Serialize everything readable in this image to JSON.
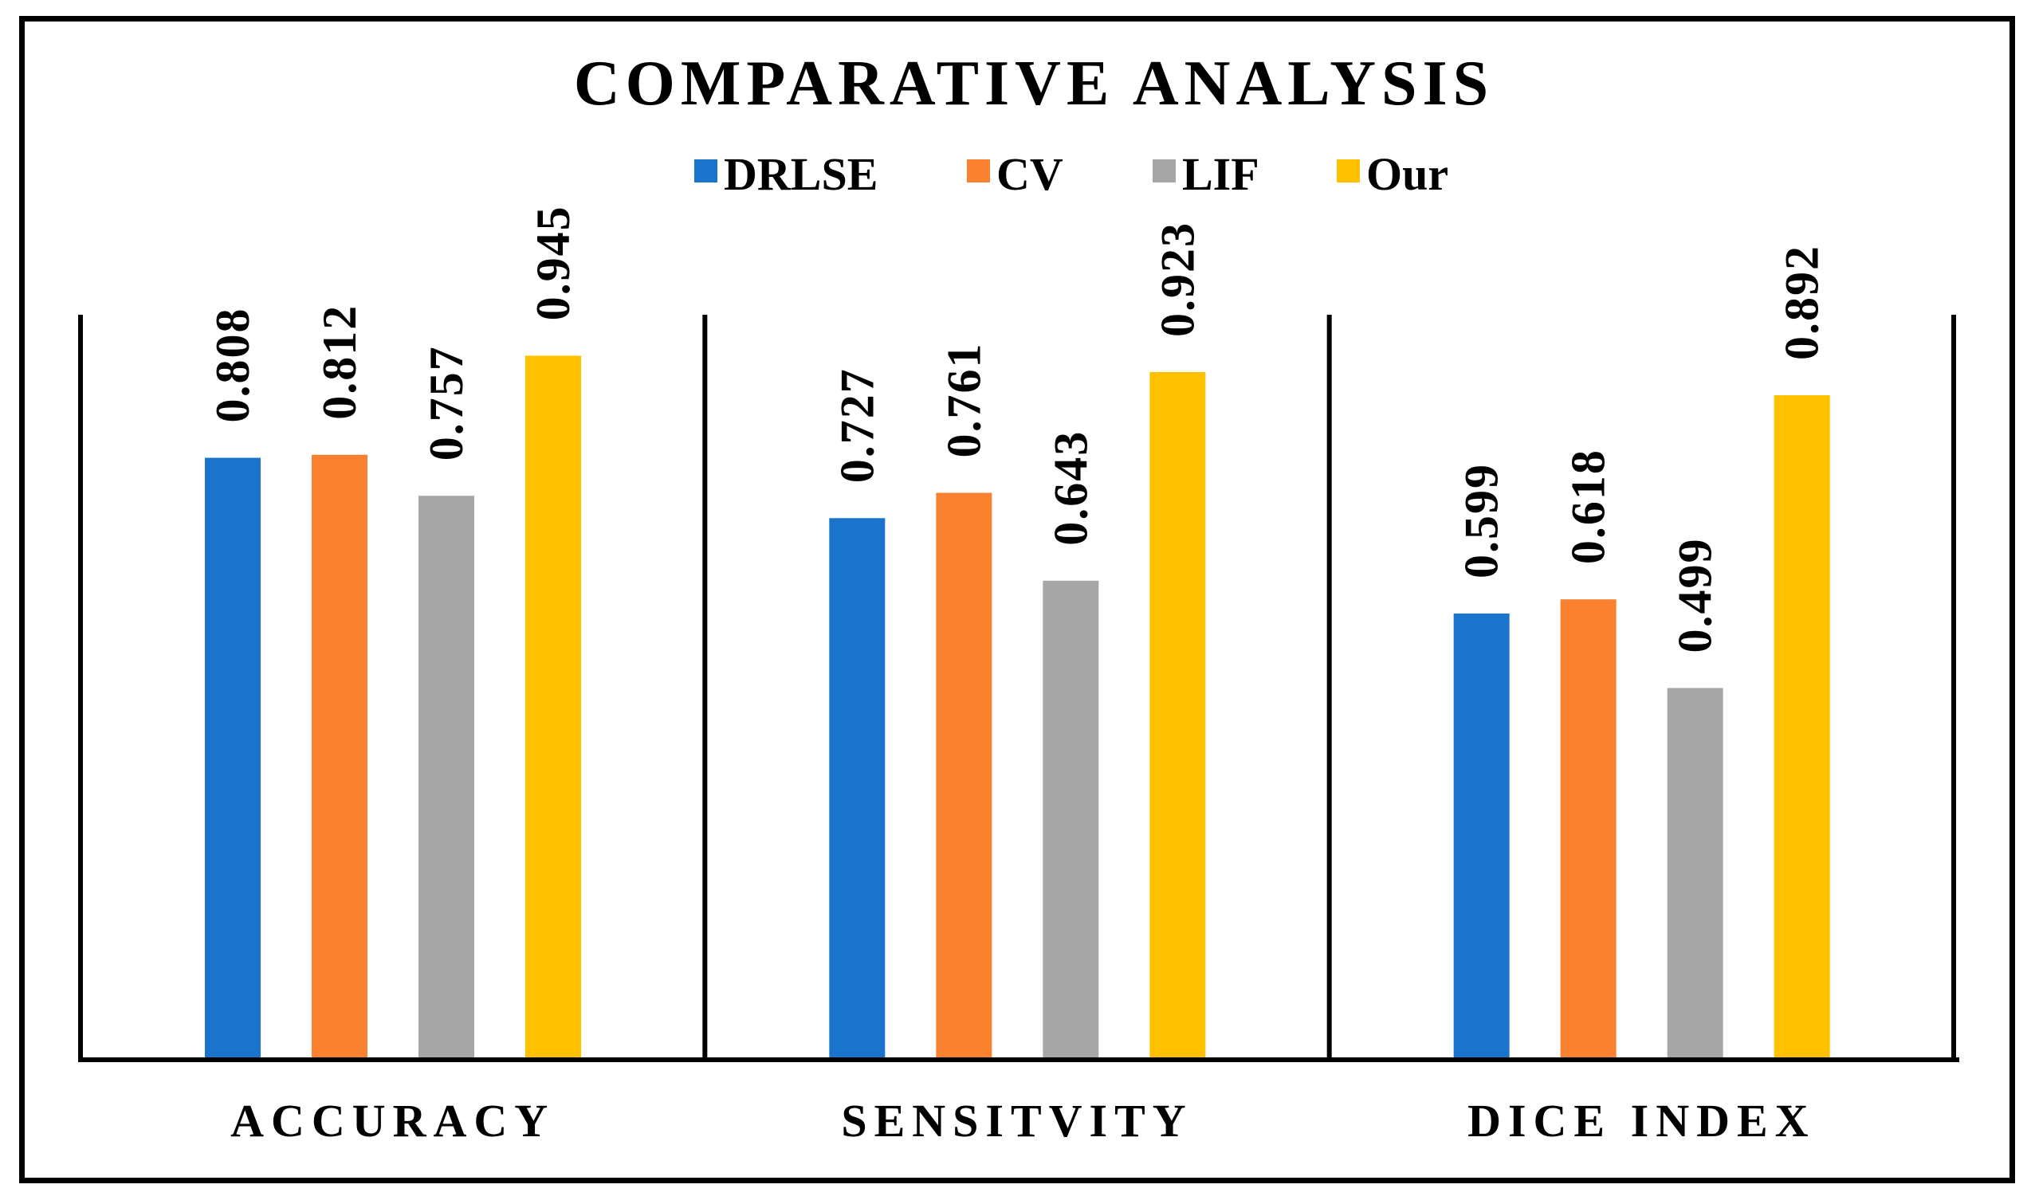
{
  "chart_data": {
    "type": "bar",
    "title": "COMPARATIVE ANALYSIS",
    "categories": [
      "ACCURACY",
      "SENSITVITY",
      "DICE INDEX"
    ],
    "series": [
      {
        "name": "DRLSE",
        "values": [
          0.808,
          0.727,
          0.599
        ],
        "color": "#1A74CC"
      },
      {
        "name": "CV",
        "values": [
          0.812,
          0.761,
          0.618
        ],
        "color": "#FA812F"
      },
      {
        "name": "LIF",
        "values": [
          0.757,
          0.643,
          0.499
        ],
        "color": "#A6A6A6"
      },
      {
        "name": "Our",
        "values": [
          0.945,
          0.923,
          0.892
        ],
        "color": "#FFC000"
      }
    ],
    "ylim": [
      0,
      1
    ],
    "grid": false,
    "legend_position": "top"
  }
}
